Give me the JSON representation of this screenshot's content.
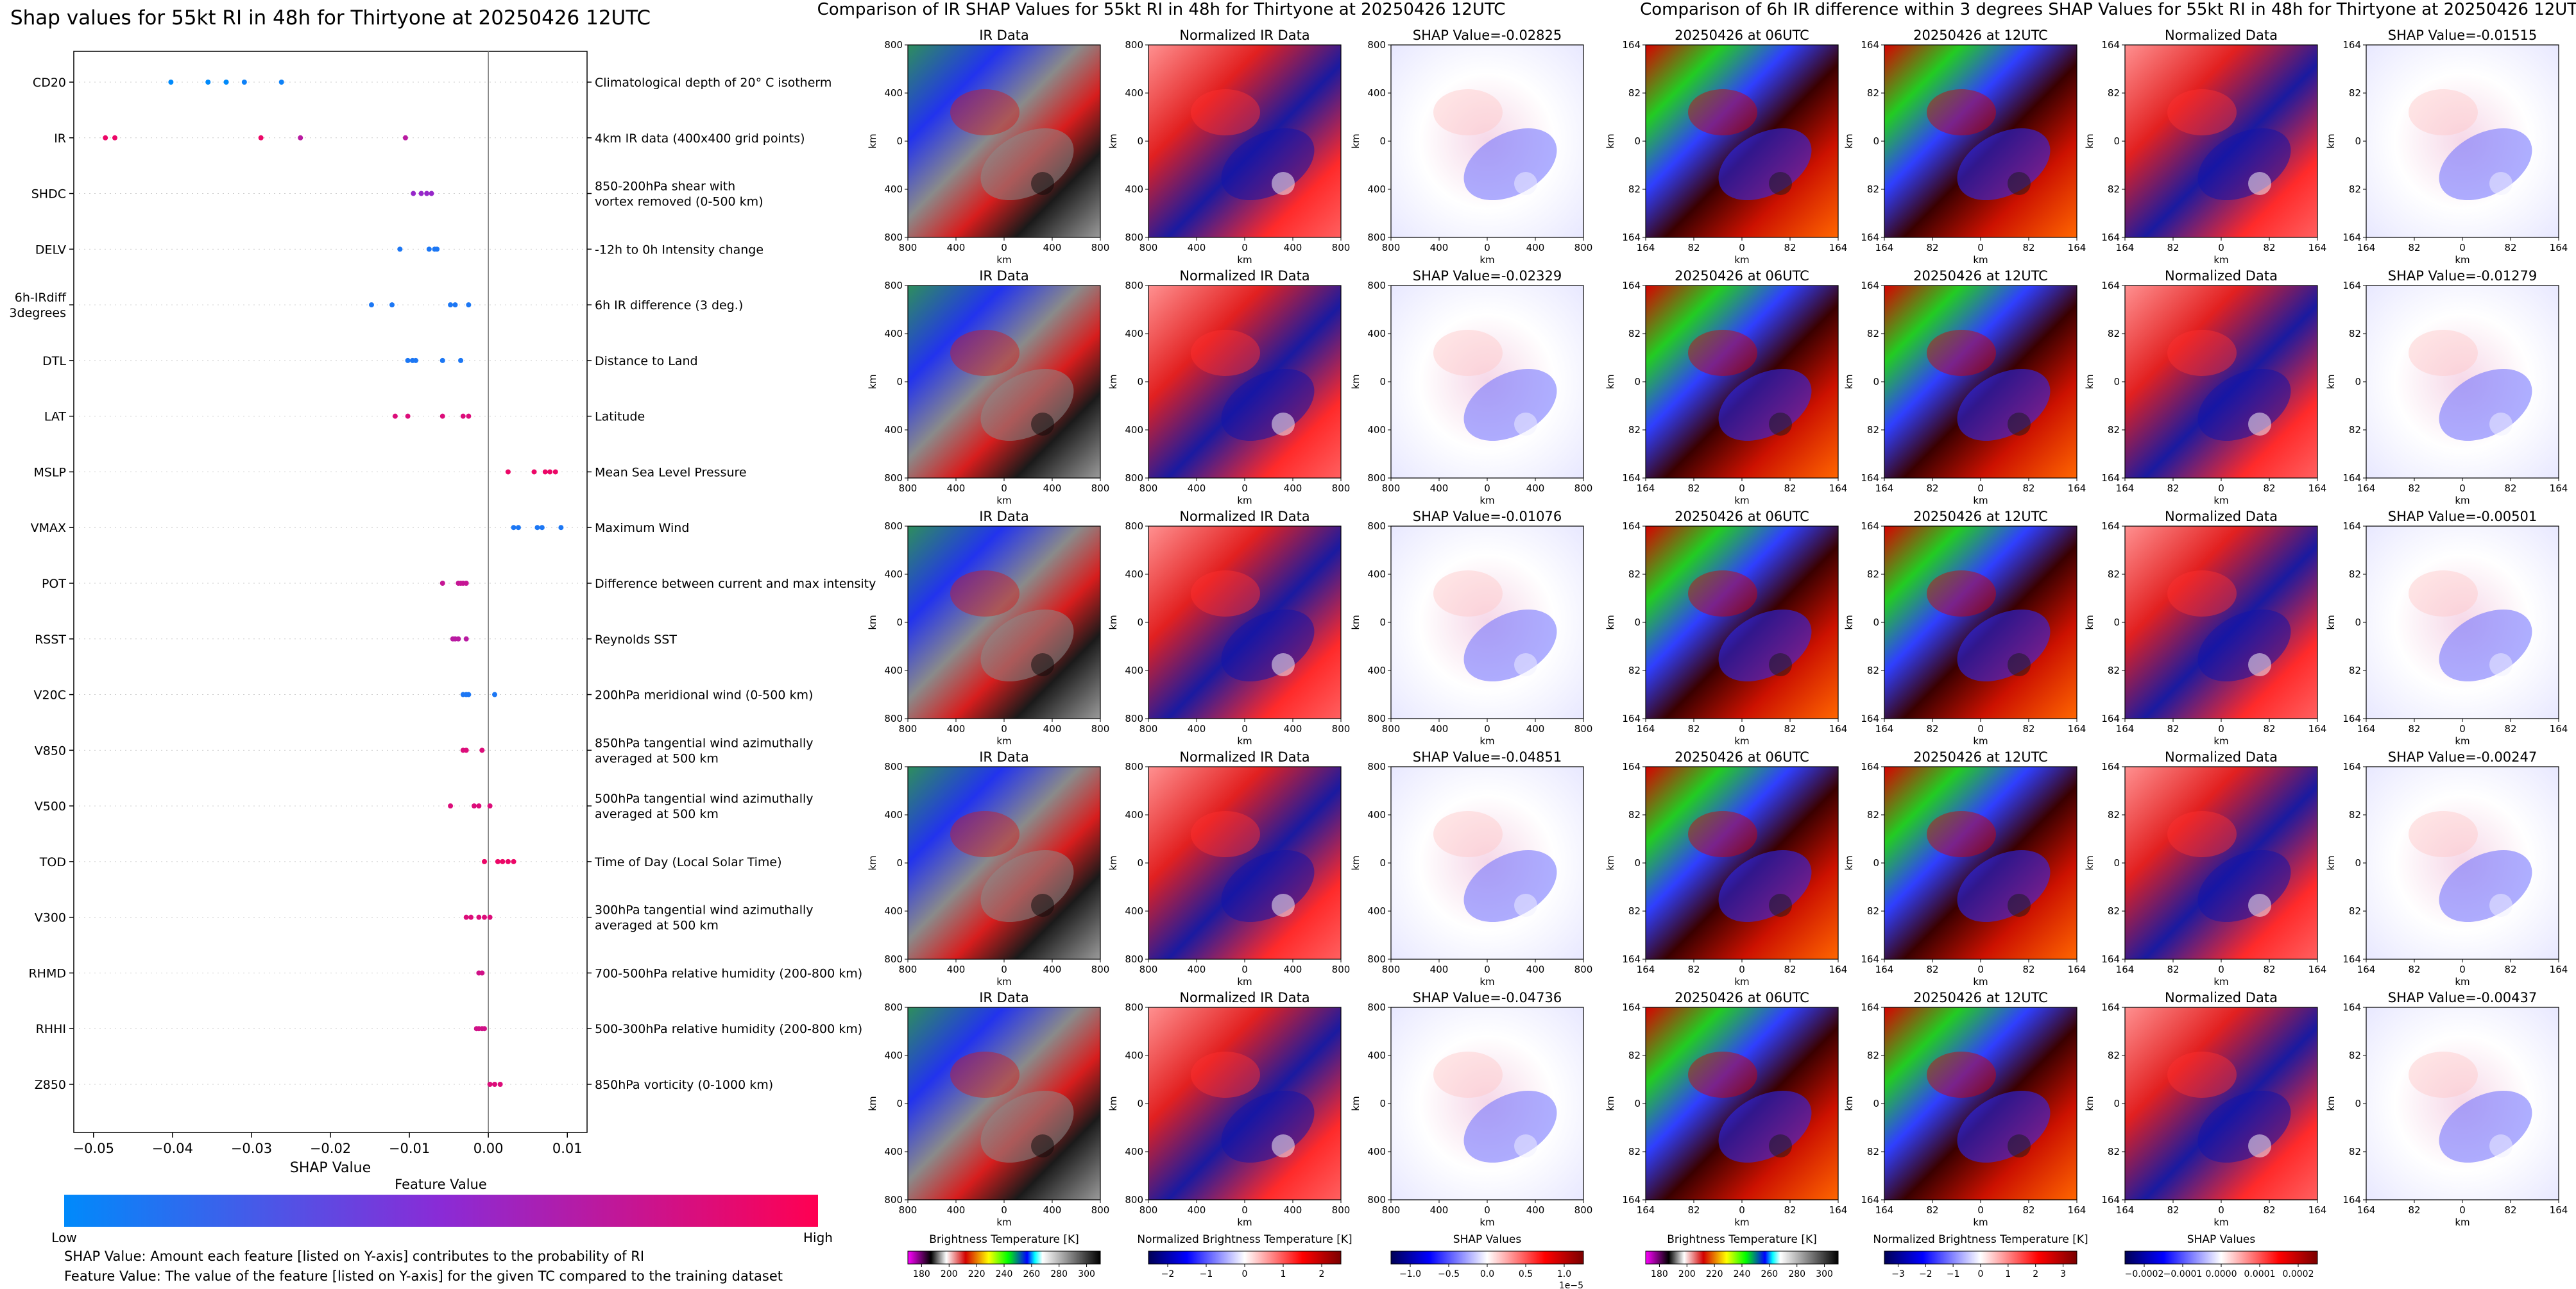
{
  "shap_panel": {
    "title": "Shap values for 55kt RI in 48h for Thirtyone at 20250426 12UTC",
    "x_label": "SHAP Value",
    "colorbar": {
      "title": "Feature Value",
      "low_label": "Low",
      "high_label": "High",
      "low_color": "#008afb",
      "mid_color": "#8a2bd6",
      "high_color": "#ff0052"
    },
    "notes": [
      "SHAP Value: Amount each feature [listed on Y-axis] contributes to the probability of RI",
      "Feature Value: The value of the feature [listed on Y-axis] for the given TC compared to the training dataset"
    ]
  },
  "chart_data": {
    "type": "scatter",
    "title": "Shap values for 55kt RI in 48h for Thirtyone at 20250426 12UTC",
    "xlabel": "SHAP Value",
    "xlim": [
      -0.0525,
      0.0125
    ],
    "xticks": [
      -0.05,
      -0.04,
      -0.03,
      -0.02,
      -0.01,
      0.0,
      0.01
    ],
    "xtick_labels": [
      "−0.05",
      "−0.04",
      "−0.03",
      "−0.02",
      "−0.01",
      "0.00",
      "0.01"
    ],
    "features": [
      {
        "name": "CD20",
        "desc": "Climatological depth of 20° C isotherm",
        "points": [
          {
            "x": -0.0402,
            "c": 0.0
          },
          {
            "x": -0.0355,
            "c": 0.0
          },
          {
            "x": -0.0332,
            "c": 0.0
          },
          {
            "x": -0.0309,
            "c": 0.05
          },
          {
            "x": -0.0262,
            "c": 0.05
          }
        ]
      },
      {
        "name": "IR",
        "desc": "4km IR data (400x400 grid points)",
        "points": [
          {
            "x": -0.0485,
            "c": 0.92
          },
          {
            "x": -0.0473,
            "c": 0.92
          },
          {
            "x": -0.0288,
            "c": 0.92
          },
          {
            "x": -0.0238,
            "c": 0.7
          },
          {
            "x": -0.0105,
            "c": 0.7
          }
        ]
      },
      {
        "name": "SHDC",
        "desc": "850-200hPa shear with\nvortex removed (0-500 km)",
        "points": [
          {
            "x": -0.0095,
            "c": 0.55
          },
          {
            "x": -0.0085,
            "c": 0.55
          },
          {
            "x": -0.0078,
            "c": 0.55
          },
          {
            "x": -0.0072,
            "c": 0.55
          }
        ]
      },
      {
        "name": "DELV",
        "desc": "-12h to 0h Intensity change",
        "points": [
          {
            "x": -0.0112,
            "c": 0.1
          },
          {
            "x": -0.0075,
            "c": 0.1
          },
          {
            "x": -0.0068,
            "c": 0.1
          },
          {
            "x": -0.0065,
            "c": 0.1
          }
        ]
      },
      {
        "name": "6h-IRdiff\n3degrees",
        "desc": "6h IR difference (3 deg.)",
        "points": [
          {
            "x": -0.0148,
            "c": 0.1
          },
          {
            "x": -0.0122,
            "c": 0.1
          },
          {
            "x": -0.0048,
            "c": 0.1
          },
          {
            "x": -0.0042,
            "c": 0.1
          },
          {
            "x": -0.0025,
            "c": 0.1
          }
        ]
      },
      {
        "name": "DTL",
        "desc": "Distance to Land",
        "points": [
          {
            "x": -0.0102,
            "c": 0.1
          },
          {
            "x": -0.0096,
            "c": 0.1
          },
          {
            "x": -0.0092,
            "c": 0.1
          },
          {
            "x": -0.0058,
            "c": 0.1
          },
          {
            "x": -0.0035,
            "c": 0.1
          }
        ]
      },
      {
        "name": "LAT",
        "desc": "Latitude",
        "points": [
          {
            "x": -0.0118,
            "c": 0.85
          },
          {
            "x": -0.0102,
            "c": 0.85
          },
          {
            "x": -0.0058,
            "c": 0.85
          },
          {
            "x": -0.0032,
            "c": 0.85
          },
          {
            "x": -0.0025,
            "c": 0.85
          }
        ]
      },
      {
        "name": "MSLP",
        "desc": "Mean Sea Level Pressure",
        "points": [
          {
            "x": 0.0025,
            "c": 0.92
          },
          {
            "x": 0.0058,
            "c": 0.92
          },
          {
            "x": 0.0072,
            "c": 0.92
          },
          {
            "x": 0.0078,
            "c": 0.92
          },
          {
            "x": 0.0085,
            "c": 0.92
          }
        ]
      },
      {
        "name": "VMAX",
        "desc": "Maximum Wind",
        "points": [
          {
            "x": 0.0032,
            "c": 0.1
          },
          {
            "x": 0.0038,
            "c": 0.1
          },
          {
            "x": 0.0062,
            "c": 0.1
          },
          {
            "x": 0.0068,
            "c": 0.1
          },
          {
            "x": 0.0092,
            "c": 0.1
          }
        ]
      },
      {
        "name": "POT",
        "desc": "Difference between current and max intensity",
        "points": [
          {
            "x": -0.0058,
            "c": 0.75
          },
          {
            "x": -0.0038,
            "c": 0.75
          },
          {
            "x": -0.0035,
            "c": 0.75
          },
          {
            "x": -0.0032,
            "c": 0.75
          },
          {
            "x": -0.0028,
            "c": 0.75
          }
        ]
      },
      {
        "name": "RSST",
        "desc": "Reynolds SST",
        "points": [
          {
            "x": -0.0045,
            "c": 0.7
          },
          {
            "x": -0.0042,
            "c": 0.7
          },
          {
            "x": -0.0038,
            "c": 0.7
          },
          {
            "x": -0.0028,
            "c": 0.7
          }
        ]
      },
      {
        "name": "V20C",
        "desc": "200hPa meridional wind (0-500 km)",
        "points": [
          {
            "x": -0.0032,
            "c": 0.1
          },
          {
            "x": -0.0028,
            "c": 0.1
          },
          {
            "x": -0.0025,
            "c": 0.1
          },
          {
            "x": 0.0008,
            "c": 0.1
          }
        ]
      },
      {
        "name": "V850",
        "desc": "850hPa tangential wind azimuthally\naveraged at 500 km",
        "points": [
          {
            "x": -0.0032,
            "c": 0.85
          },
          {
            "x": -0.0028,
            "c": 0.85
          },
          {
            "x": -0.0008,
            "c": 0.85
          }
        ]
      },
      {
        "name": "V500",
        "desc": "500hPa tangential wind azimuthally\naveraged at 500 km",
        "points": [
          {
            "x": -0.0048,
            "c": 0.85
          },
          {
            "x": -0.0018,
            "c": 0.85
          },
          {
            "x": -0.0012,
            "c": 0.85
          },
          {
            "x": 0.0002,
            "c": 0.85
          }
        ]
      },
      {
        "name": "TOD",
        "desc": "Time of Day (Local Solar Time)",
        "points": [
          {
            "x": -0.0005,
            "c": 0.92
          },
          {
            "x": 0.0012,
            "c": 0.92
          },
          {
            "x": 0.0018,
            "c": 0.92
          },
          {
            "x": 0.0025,
            "c": 0.92
          },
          {
            "x": 0.0032,
            "c": 0.92
          }
        ]
      },
      {
        "name": "V300",
        "desc": "300hPa tangential wind azimuthally\naveraged at 500 km",
        "points": [
          {
            "x": -0.0028,
            "c": 0.85
          },
          {
            "x": -0.0022,
            "c": 0.85
          },
          {
            "x": -0.0012,
            "c": 0.85
          },
          {
            "x": -0.0005,
            "c": 0.85
          },
          {
            "x": 0.0002,
            "c": 0.85
          }
        ]
      },
      {
        "name": "RHMD",
        "desc": "700-500hPa relative humidity (200-800 km)",
        "points": [
          {
            "x": -0.0012,
            "c": 0.8
          },
          {
            "x": -0.0008,
            "c": 0.8
          }
        ]
      },
      {
        "name": "RHHI",
        "desc": "500-300hPa relative humidity (200-800 km)",
        "points": [
          {
            "x": -0.0015,
            "c": 0.8
          },
          {
            "x": -0.0012,
            "c": 0.8
          },
          {
            "x": -0.0008,
            "c": 0.8
          },
          {
            "x": -0.0005,
            "c": 0.8
          }
        ]
      },
      {
        "name": "Z850",
        "desc": "850hPa vorticity (0-1000 km)",
        "points": [
          {
            "x": 0.0002,
            "c": 0.85
          },
          {
            "x": 0.0008,
            "c": 0.85
          },
          {
            "x": 0.0015,
            "c": 0.85
          }
        ]
      }
    ]
  },
  "comparison_ir": {
    "title": "Comparison of IR SHAP Values for 55kt RI in 48h for Thirtyone at 20250426 12UTC",
    "columns": [
      {
        "titles": [
          "IR Data",
          "IR Data",
          "IR Data",
          "IR Data",
          "IR Data"
        ],
        "xticks": [
          "800",
          "400",
          "0",
          "400",
          "800"
        ],
        "yticks": [
          "800",
          "400",
          "0",
          "400",
          "800"
        ],
        "axis_label": "km",
        "colormap": "ir"
      },
      {
        "titles": [
          "Normalized IR Data",
          "Normalized IR Data",
          "Normalized IR Data",
          "Normalized IR Data",
          "Normalized IR Data"
        ],
        "xticks": [
          "800",
          "400",
          "0",
          "400",
          "800"
        ],
        "yticks": [
          "800",
          "400",
          "0",
          "400",
          "800"
        ],
        "axis_label": "km",
        "colormap": "bwr"
      },
      {
        "titles": [
          "SHAP Value=-0.02825",
          "SHAP Value=-0.02329",
          "SHAP Value=-0.01076",
          "SHAP Value=-0.04851",
          "SHAP Value=-0.04736"
        ],
        "xticks": [
          "800",
          "400",
          "0",
          "400",
          "800"
        ],
        "yticks": [
          "800",
          "400",
          "0",
          "400",
          "800"
        ],
        "axis_label": "km",
        "colormap": "shap"
      }
    ],
    "colorbars": [
      {
        "label": "Brightness Temperature [K]",
        "ticks": [
          "180",
          "200",
          "220",
          "240",
          "260",
          "280",
          "300"
        ],
        "colormap": "ir"
      },
      {
        "label": "Normalized Brightness Temperature [K]",
        "ticks": [
          "−2",
          "−1",
          "0",
          "1",
          "2"
        ],
        "colormap": "bwr"
      },
      {
        "label": "SHAP Values",
        "ticks": [
          "−1.0",
          "−0.5",
          "0.0",
          "0.5",
          "1.0"
        ],
        "offset": "1e−5",
        "colormap": "bwr"
      }
    ]
  },
  "comparison_diff": {
    "title": "Comparison of 6h IR difference within 3 degrees SHAP Values for 55kt RI in 48h for Thirtyone at 20250426 12UTC",
    "columns": [
      {
        "titles": [
          "20250426 at 06UTC",
          "20250426 at 06UTC",
          "20250426 at 06UTC",
          "20250426 at 06UTC",
          "20250426 at 06UTC"
        ],
        "xticks": [
          "164",
          "82",
          "0",
          "82",
          "164"
        ],
        "yticks": [
          "164",
          "82",
          "0",
          "82",
          "164"
        ],
        "axis_label": "km",
        "colormap": "ir2"
      },
      {
        "titles": [
          "20250426 at 12UTC",
          "20250426 at 12UTC",
          "20250426 at 12UTC",
          "20250426 at 12UTC",
          "20250426 at 12UTC"
        ],
        "xticks": [
          "164",
          "82",
          "0",
          "82",
          "164"
        ],
        "yticks": [
          "164",
          "82",
          "0",
          "82",
          "164"
        ],
        "axis_label": "km",
        "colormap": "ir2"
      },
      {
        "titles": [
          "Normalized Data",
          "Normalized Data",
          "Normalized Data",
          "Normalized Data",
          "Normalized Data"
        ],
        "xticks": [
          "164",
          "82",
          "0",
          "82",
          "164"
        ],
        "yticks": [
          "164",
          "82",
          "0",
          "82",
          "164"
        ],
        "axis_label": "km",
        "colormap": "bwr"
      },
      {
        "titles": [
          "SHAP Value=-0.01515",
          "SHAP Value=-0.01279",
          "SHAP Value=-0.00501",
          "SHAP Value=-0.00247",
          "SHAP Value=-0.00437"
        ],
        "xticks": [
          "164",
          "82",
          "0",
          "82",
          "164"
        ],
        "yticks": [
          "164",
          "82",
          "0",
          "82",
          "164"
        ],
        "axis_label": "km",
        "colormap": "shap"
      }
    ],
    "colorbars": [
      {
        "label": "Brightness Temperature [K]",
        "ticks": [
          "180",
          "200",
          "220",
          "240",
          "260",
          "280",
          "300"
        ],
        "colormap": "ir2"
      },
      {
        "label": "Normalized Brightness Temperature [K]",
        "ticks": [
          "−3",
          "−2",
          "−1",
          "0",
          "1",
          "2",
          "3"
        ],
        "colormap": "bwr"
      },
      {
        "label": "SHAP Values",
        "ticks": [
          "−0.0002",
          "−0.0001",
          "0.0000",
          "0.0001",
          "0.0002"
        ],
        "colormap": "bwr"
      }
    ]
  }
}
